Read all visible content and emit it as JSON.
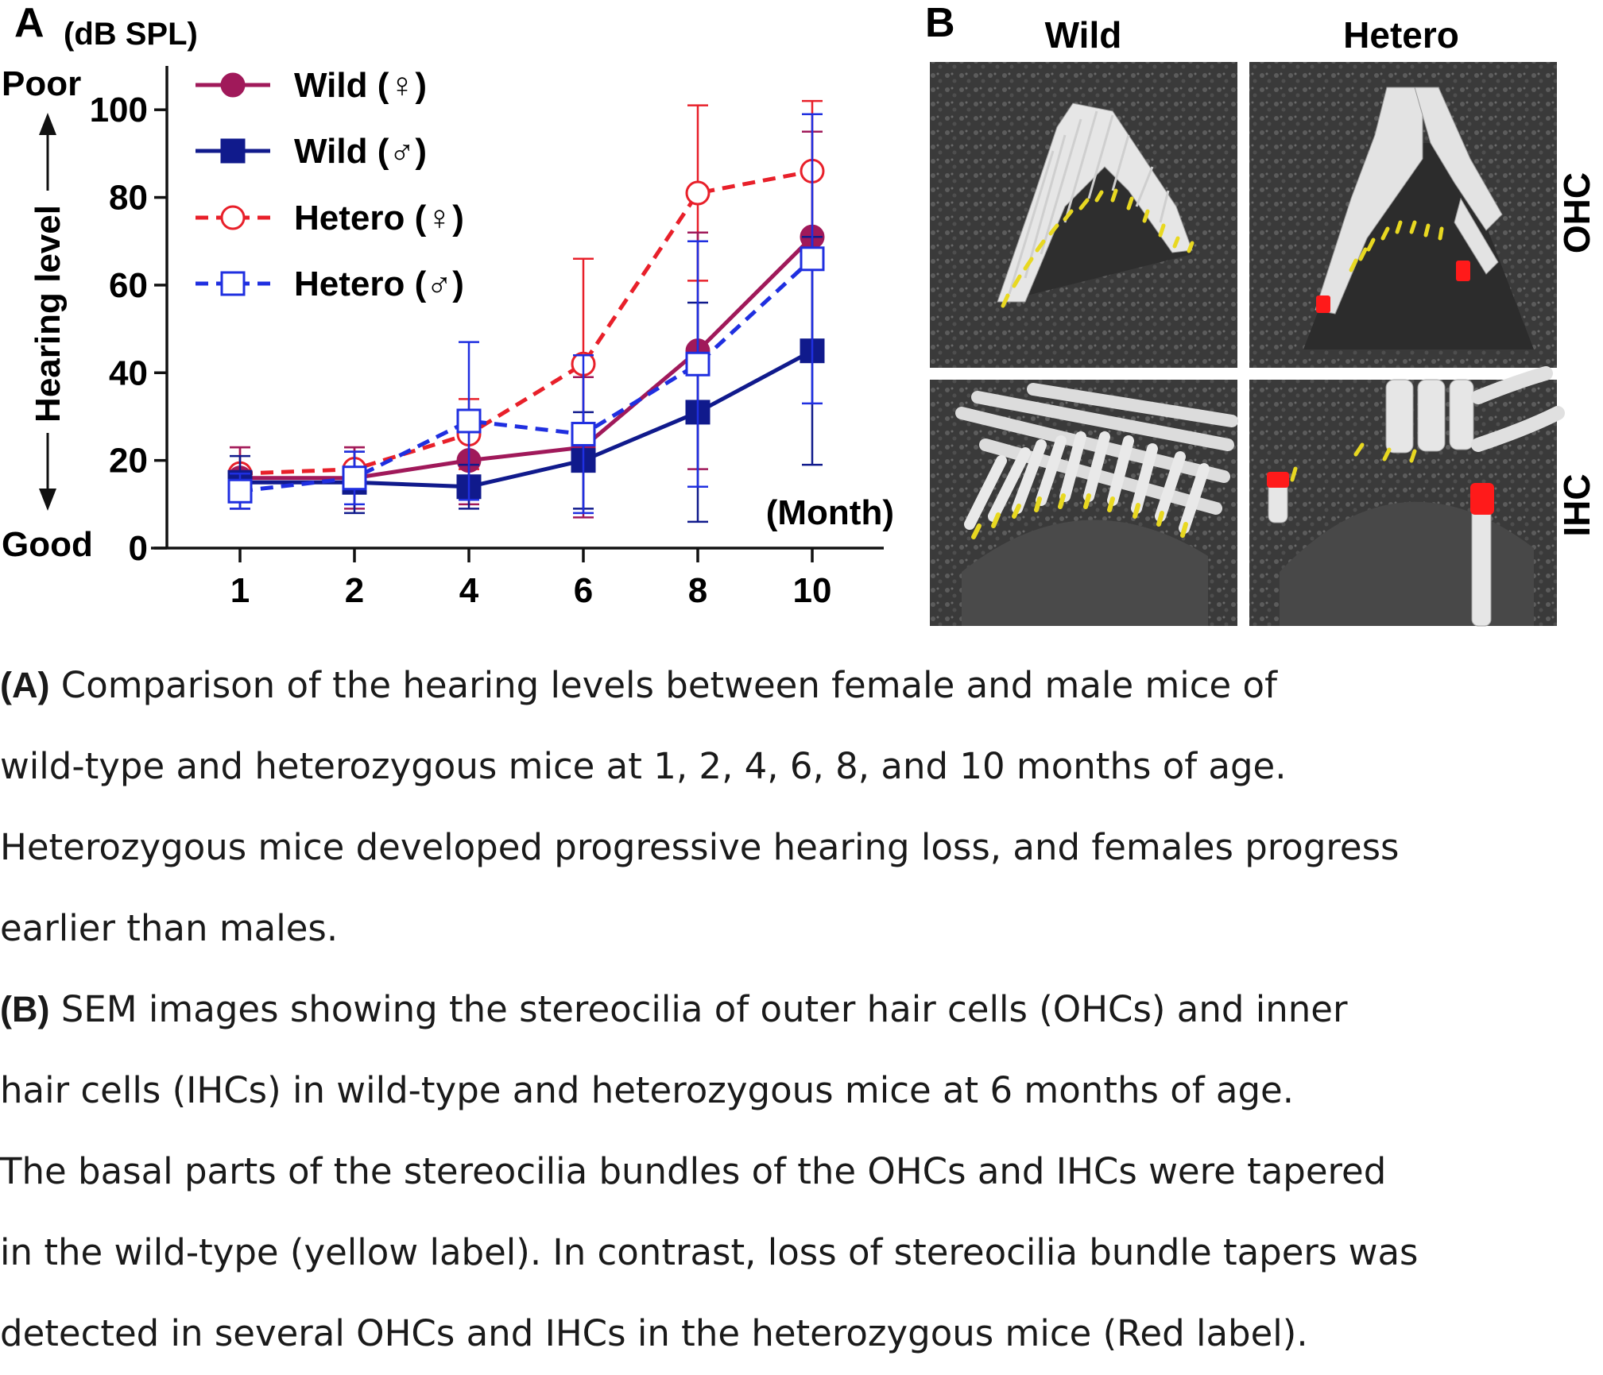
{
  "panel_a": {
    "letter": "A",
    "unit": "(dB SPL)",
    "poor_label": "Poor",
    "good_label": "Good",
    "ylabel": "Hearing level",
    "xunit": "(Month)"
  },
  "panel_b": {
    "letter": "B",
    "col_labels": [
      "Wild",
      "Hetero"
    ],
    "row_labels": [
      "OHC",
      "IHC"
    ]
  },
  "chart_data": {
    "type": "line",
    "categories": [
      "1",
      "2",
      "4",
      "6",
      "8",
      "10"
    ],
    "ylim": [
      0,
      110
    ],
    "yticks": [
      "0",
      "20",
      "40",
      "60",
      "80",
      "100"
    ],
    "grid": false,
    "legend_position": "top-left",
    "series": [
      {
        "name": "Wild (♀)",
        "color": "#a0195a",
        "marker": "circle",
        "filled": true,
        "dashed": false,
        "values": [
          16,
          16,
          20,
          23,
          45,
          71
        ],
        "err": [
          7,
          7,
          10,
          16,
          27,
          24
        ]
      },
      {
        "name": "Wild (♂)",
        "color": "#101a8c",
        "marker": "square",
        "filled": true,
        "dashed": false,
        "values": [
          15,
          15,
          14,
          20,
          31,
          45
        ],
        "err": [
          6,
          7,
          5,
          11,
          25,
          26
        ]
      },
      {
        "name": "Hetero (♀)",
        "color": "#e8202a",
        "marker": "circle",
        "filled": false,
        "dashed": true,
        "values": [
          17,
          18,
          26,
          42,
          81,
          86
        ],
        "err": [
          6,
          5,
          8,
          24,
          20,
          16
        ]
      },
      {
        "name": "Hetero (♂)",
        "color": "#1f2fe0",
        "marker": "square",
        "filled": false,
        "dashed": true,
        "values": [
          13,
          16,
          29,
          26,
          42,
          66
        ],
        "err": [
          4,
          6,
          18,
          18,
          28,
          33
        ]
      }
    ]
  },
  "captions": [
    {
      "bold": "(A)",
      "text": " Comparison of the hearing levels between female and male mice of"
    },
    {
      "bold": "",
      "text": "wild-type and heterozygous mice at 1, 2, 4, 6, 8, and 10 months of age."
    },
    {
      "bold": "",
      "text": "Heterozygous mice developed progressive hearing loss, and females progress"
    },
    {
      "bold": "",
      "text": "earlier than males."
    },
    {
      "bold": "(B)",
      "text": " SEM images showing the stereocilia of outer hair cells (OHCs) and inner"
    },
    {
      "bold": "",
      "text": "hair cells (IHCs) in wild-type and heterozygous mice at 6 months of age."
    },
    {
      "bold": "",
      "text": "The basal parts of the stereocilia bundles of the OHCs and IHCs were tapered"
    },
    {
      "bold": "",
      "text": "in the wild-type (yellow label). In contrast, loss of stereocilia bundle tapers was"
    },
    {
      "bold": "",
      "text": "detected in several OHCs and IHCs in the heterozygous mice (Red label)."
    }
  ]
}
